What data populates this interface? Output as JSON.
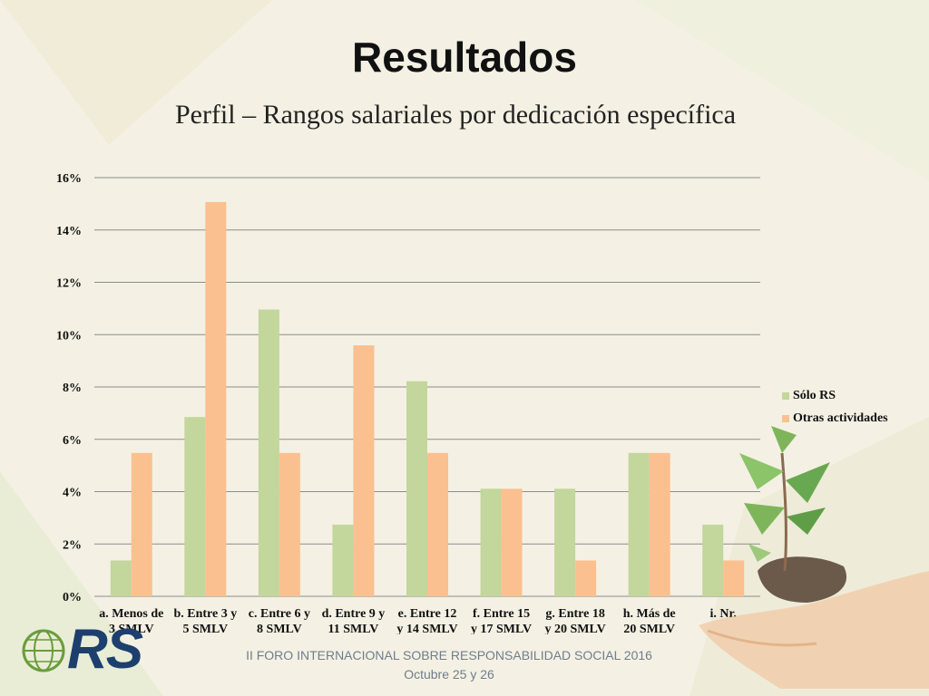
{
  "slide": {
    "title": "Resultados",
    "subtitle": "Perfil – Rangos salariales por dedicación específica",
    "footer_line1": "II FORO INTERNACIONAL SOBRE RESPONSABILIDAD SOCIAL 2016",
    "footer_line2": "Octubre 25 y 26",
    "logo_text": "RS"
  },
  "colors": {
    "series1": "#c3d69b",
    "series2": "#fac090",
    "grid": "#8c8c8c"
  },
  "icons": [
    "globe-logo-icon",
    "plant-in-hand-icon"
  ],
  "chart_data": {
    "type": "bar",
    "categories": [
      [
        "a. Menos de",
        "3 SMLV"
      ],
      [
        "b. Entre 3 y",
        "5 SMLV"
      ],
      [
        "c. Entre 6 y",
        "8 SMLV"
      ],
      [
        "d. Entre 9 y",
        "11 SMLV"
      ],
      [
        "e. Entre 12",
        "y 14 SMLV"
      ],
      [
        "f. Entre 15",
        "y 17 SMLV"
      ],
      [
        "g. Entre 18",
        "y 20 SMLV"
      ],
      [
        "h. Más de",
        "20 SMLV"
      ],
      [
        "i. Nr.",
        ""
      ]
    ],
    "series": [
      {
        "name": "Sólo RS",
        "values": [
          1.37,
          6.85,
          10.96,
          2.74,
          8.22,
          4.11,
          4.11,
          5.48,
          2.74
        ]
      },
      {
        "name": "Otras actividades",
        "values": [
          5.48,
          15.07,
          5.48,
          9.59,
          5.48,
          4.11,
          1.37,
          5.48,
          1.37
        ]
      }
    ],
    "ylim": [
      0,
      16
    ],
    "yticks": [
      "0%",
      "2%",
      "4%",
      "6%",
      "8%",
      "10%",
      "12%",
      "14%",
      "16%"
    ],
    "grid": true,
    "legend": "right"
  }
}
